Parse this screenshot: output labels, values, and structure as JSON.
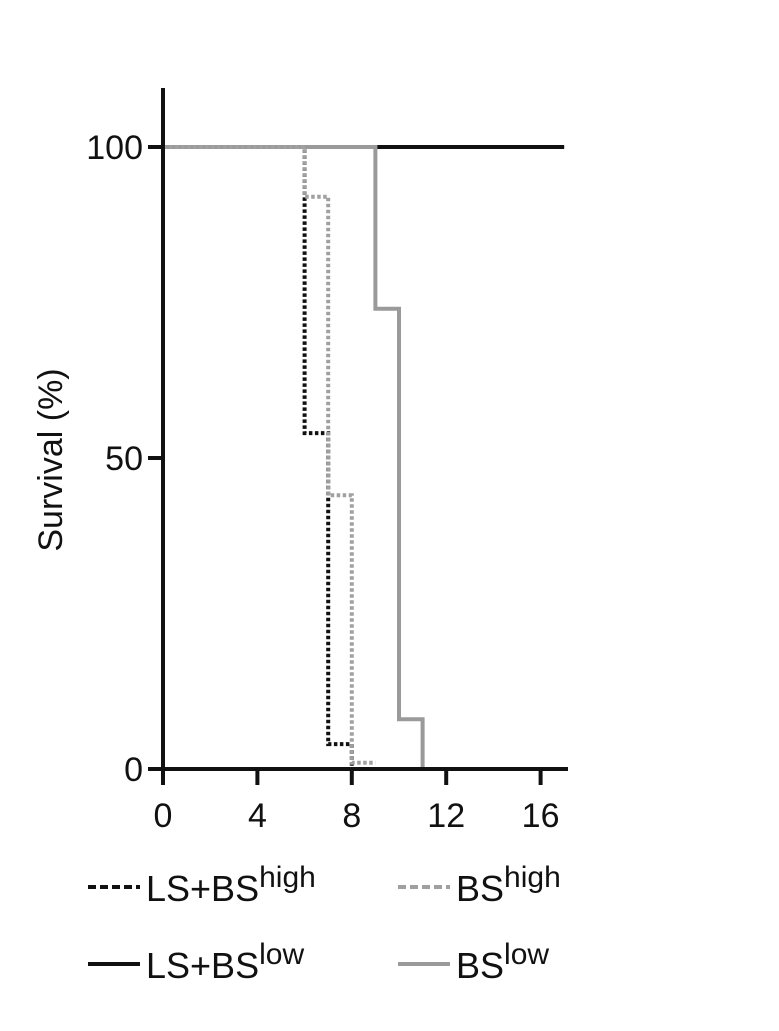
{
  "chart_data": {
    "type": "line",
    "subtype": "kaplan-meier step survival curve",
    "title": "",
    "xlabel": "",
    "ylabel": "Survival (%)",
    "xlim": [
      0,
      17
    ],
    "ylim": [
      0,
      110
    ],
    "xticks": [
      0,
      4,
      8,
      12,
      16
    ],
    "xtick_labels": [
      "0",
      "4",
      "8",
      "12",
      "16"
    ],
    "yticks": [
      0,
      50,
      100
    ],
    "ytick_labels": [
      "0",
      "50",
      "100"
    ],
    "grid": false,
    "legend_position": "bottom",
    "series": [
      {
        "name": "LS+BS",
        "name_superscript": "high",
        "color": "#111111",
        "line_style": "dotted",
        "x": [
          0,
          6,
          6,
          7,
          7,
          8,
          8
        ],
        "y": [
          100,
          100,
          54,
          54,
          4,
          4,
          0
        ]
      },
      {
        "name": "BS",
        "name_superscript": "high",
        "color": "#a0a0a0",
        "line_style": "dotted",
        "x": [
          0,
          6,
          6,
          7,
          7,
          8,
          8,
          9
        ],
        "y": [
          100,
          100,
          92,
          92,
          44,
          44,
          1,
          1
        ]
      },
      {
        "name": "LS+BS",
        "name_superscript": "low",
        "color": "#111111",
        "line_style": "solid",
        "x": [
          0,
          17
        ],
        "y": [
          100,
          100
        ]
      },
      {
        "name": "BS",
        "name_superscript": "low",
        "color": "#9a9a9a",
        "line_style": "solid",
        "x": [
          0,
          9,
          9,
          10,
          10,
          11,
          11
        ],
        "y": [
          100,
          100,
          74,
          74,
          8,
          8,
          0
        ]
      }
    ]
  }
}
